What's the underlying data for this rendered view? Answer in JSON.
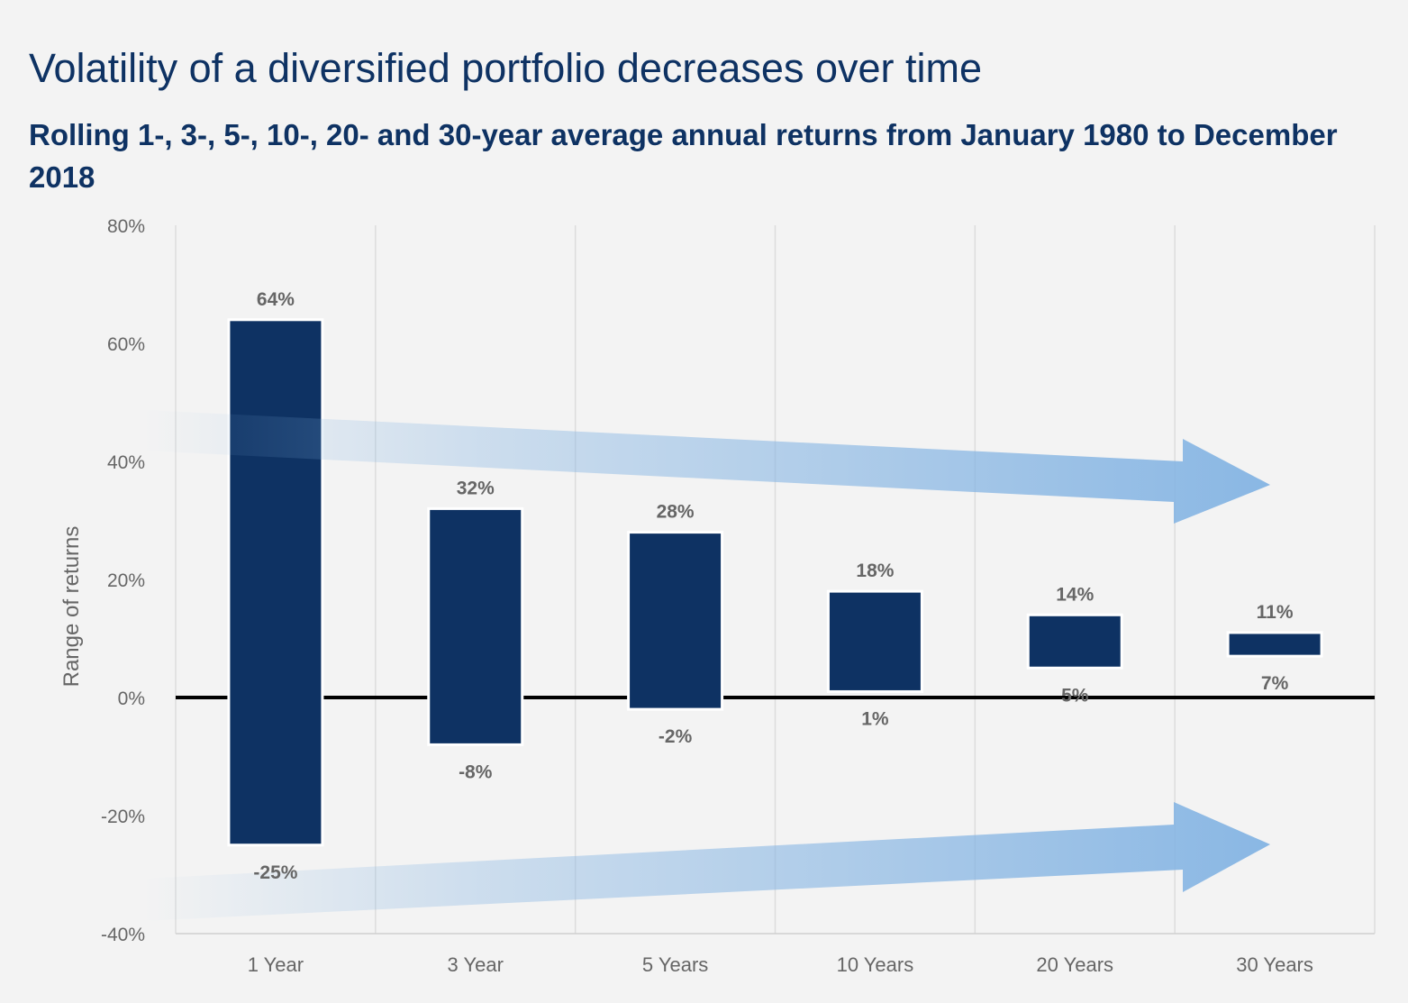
{
  "title": "Volatility of a diversified portfolio decreases over time",
  "subtitle": "Rolling 1-, 3-, 5-, 10-, 20- and 30-year average annual returns from January 1980 to December 2018",
  "colors": {
    "bar": "#0e3263",
    "arrow": "#84b4e3",
    "text": "#666666",
    "title": "#0e3263",
    "zero_line": "#000000"
  },
  "chart_data": {
    "type": "bar",
    "subtype": "floating-range",
    "ylabel": "Range of returns",
    "ylim": [
      -40,
      80
    ],
    "yticks": [
      80,
      60,
      40,
      20,
      0,
      -20,
      -40
    ],
    "ytick_labels": [
      "80%",
      "60%",
      "40%",
      "20%",
      "0%",
      "-20%",
      "-40%"
    ],
    "categories": [
      "1 Year",
      "3 Year",
      "5 Years",
      "10 Years",
      "20 Years",
      "30 Years"
    ],
    "series": [
      {
        "name": "High",
        "values": [
          64,
          32,
          28,
          18,
          14,
          11
        ],
        "labels": [
          "64%",
          "32%",
          "28%",
          "18%",
          "14%",
          "11%"
        ]
      },
      {
        "name": "Low",
        "values": [
          -25,
          -8,
          -2,
          1,
          5,
          7
        ],
        "labels": [
          "-25%",
          "-8%",
          "-2%",
          "1%",
          "5%",
          "7%"
        ]
      }
    ],
    "grid": "vertical",
    "annotations": [
      "arrow-converging-from-top",
      "arrow-converging-from-bottom"
    ]
  }
}
